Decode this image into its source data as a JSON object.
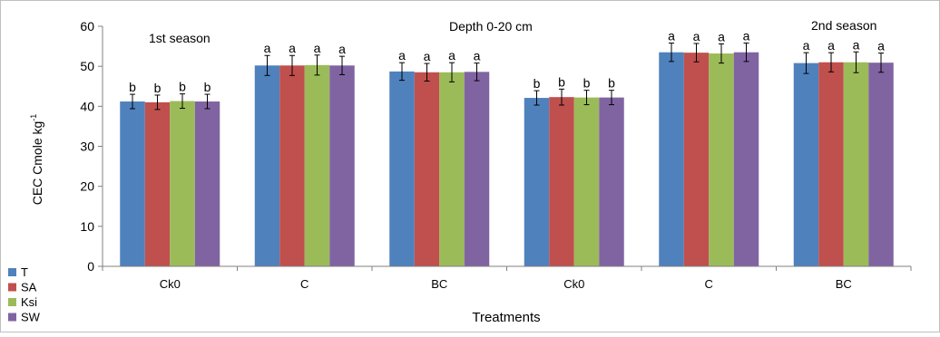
{
  "chart_data": {
    "type": "bar",
    "annotations": {
      "season1": "1st season",
      "depth": "Depth 0-20 cm",
      "season2": "2nd season"
    },
    "xlabel": "Treatments",
    "ylabel_main": "CEC Cmole kg",
    "ylabel_sup": "-1",
    "ylim": [
      0,
      60
    ],
    "yticks": [
      "0",
      "10",
      "20",
      "30",
      "40",
      "50",
      "60"
    ],
    "grid": false,
    "legend_position": "bottom-left",
    "categories": [
      "Ck0",
      "C",
      "BC",
      "Ck0",
      "C",
      "BC"
    ],
    "series": [
      {
        "name": "T",
        "color": "#4f81bd",
        "values": [
          41.2,
          50.2,
          48.7,
          42.1,
          53.5,
          50.8
        ],
        "errors": [
          1.8,
          2.5,
          2.2,
          1.8,
          2.3,
          2.6
        ],
        "letters": [
          "b",
          "a",
          "a",
          "b",
          "a",
          "a"
        ]
      },
      {
        "name": "SA",
        "color": "#c0504d",
        "values": [
          41.0,
          50.2,
          48.5,
          42.3,
          53.4,
          51.0
        ],
        "errors": [
          1.8,
          2.5,
          2.2,
          2.0,
          2.3,
          2.4
        ],
        "letters": [
          "b",
          "a",
          "a",
          "b",
          "a",
          "a"
        ]
      },
      {
        "name": "Ksi",
        "color": "#9bbb59",
        "values": [
          41.3,
          50.3,
          48.5,
          42.2,
          53.2,
          51.0
        ],
        "errors": [
          1.8,
          2.5,
          2.4,
          1.8,
          2.4,
          2.6
        ],
        "letters": [
          "b",
          "a",
          "a",
          "b",
          "a",
          "a"
        ]
      },
      {
        "name": "SW",
        "color": "#8064a2",
        "values": [
          41.2,
          50.2,
          48.6,
          42.2,
          53.5,
          50.9
        ],
        "errors": [
          1.8,
          2.3,
          2.2,
          1.8,
          2.3,
          2.4
        ],
        "letters": [
          "b",
          "a",
          "a",
          "b",
          "a",
          "a"
        ]
      }
    ]
  }
}
